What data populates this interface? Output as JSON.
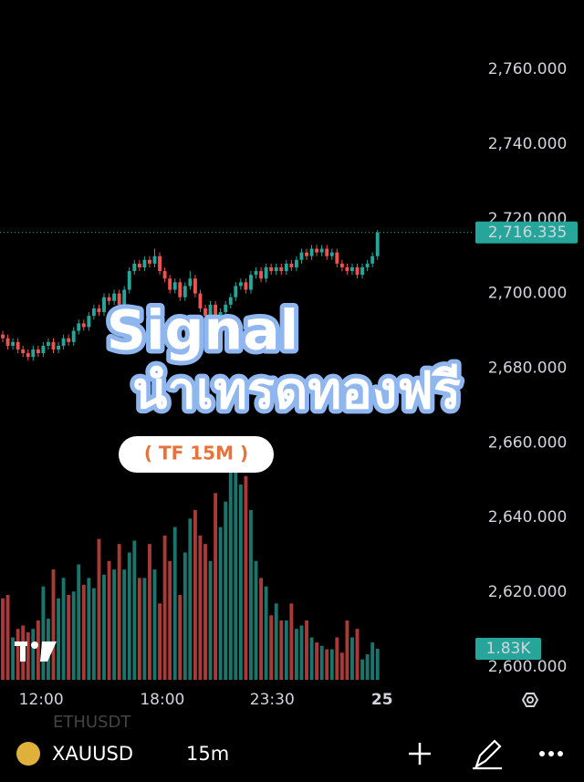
{
  "chart_data": {
    "type": "candlestick",
    "open": [
      2689,
      2688,
      2686,
      2687,
      2685,
      2684,
      2683,
      2685,
      2684,
      2686,
      2687,
      2685,
      2686,
      2688,
      2687,
      2690,
      2692,
      2691,
      2694,
      2696,
      2695,
      2699,
      2698,
      2700,
      2697,
      2701,
      2706,
      2708,
      2707,
      2709,
      2708,
      2710,
      2706,
      2704,
      2701,
      2703,
      2699,
      2702,
      2704,
      2700,
      2696,
      2694,
      2697,
      2693,
      2695,
      2697,
      2699,
      2702,
      2703,
      2701,
      2705,
      2706,
      2704,
      2707,
      2706,
      2707,
      2706,
      2708,
      2707,
      2709,
      2711,
      2710,
      2712,
      2711,
      2712,
      2710,
      2711,
      2708,
      2707,
      2706,
      2707,
      2705,
      2707,
      2708,
      2710
    ],
    "high": [
      2690,
      2689,
      2688,
      2688,
      2686,
      2685,
      2686,
      2686,
      2687,
      2688,
      2688,
      2687,
      2689,
      2689,
      2691,
      2693,
      2693,
      2695,
      2697,
      2697,
      2700,
      2700,
      2701,
      2701,
      2702,
      2707,
      2709,
      2709,
      2710,
      2710,
      2712,
      2711,
      2707,
      2705,
      2704,
      2704,
      2703,
      2706,
      2705,
      2701,
      2697,
      2698,
      2698,
      2696,
      2698,
      2700,
      2703,
      2704,
      2704,
      2706,
      2707,
      2707,
      2708,
      2708,
      2708,
      2708,
      2709,
      2709,
      2710,
      2712,
      2712,
      2713,
      2713,
      2713,
      2713,
      2712,
      2712,
      2709,
      2708,
      2708,
      2708,
      2708,
      2709,
      2711,
      2717
    ],
    "low": [
      2687,
      2685,
      2685,
      2684,
      2683,
      2682,
      2682,
      2683,
      2683,
      2685,
      2684,
      2684,
      2685,
      2686,
      2686,
      2689,
      2690,
      2690,
      2693,
      2694,
      2694,
      2697,
      2697,
      2696,
      2696,
      2700,
      2705,
      2706,
      2706,
      2707,
      2707,
      2705,
      2703,
      2700,
      2700,
      2698,
      2698,
      2701,
      2699,
      2695,
      2693,
      2693,
      2692,
      2692,
      2694,
      2696,
      2698,
      2701,
      2700,
      2700,
      2704,
      2703,
      2703,
      2705,
      2705,
      2705,
      2705,
      2706,
      2706,
      2708,
      2709,
      2709,
      2710,
      2710,
      2709,
      2709,
      2707,
      2706,
      2705,
      2705,
      2704,
      2704,
      2706,
      2707,
      2709
    ],
    "close": [
      2688,
      2686,
      2687,
      2685,
      2684,
      2683,
      2685,
      2684,
      2686,
      2687,
      2685,
      2686,
      2688,
      2687,
      2690,
      2692,
      2691,
      2694,
      2696,
      2695,
      2699,
      2698,
      2700,
      2697,
      2701,
      2706,
      2708,
      2707,
      2709,
      2708,
      2710,
      2706,
      2704,
      2701,
      2703,
      2699,
      2702,
      2704,
      2700,
      2696,
      2694,
      2697,
      2693,
      2695,
      2697,
      2699,
      2702,
      2703,
      2701,
      2705,
      2706,
      2704,
      2707,
      2706,
      2707,
      2706,
      2708,
      2707,
      2709,
      2711,
      2710,
      2712,
      2711,
      2712,
      2710,
      2711,
      2708,
      2707,
      2706,
      2707,
      2705,
      2707,
      2708,
      2710,
      2716.335
    ],
    "volume": [
      4.8,
      5.0,
      2.5,
      3.0,
      3.2,
      2.8,
      3.0,
      3.5,
      5.5,
      3.6,
      6.5,
      4.8,
      6.0,
      5.0,
      5.2,
      6.8,
      5.6,
      6.0,
      5.4,
      8.3,
      6.2,
      7.0,
      6.5,
      8.0,
      6.5,
      7.5,
      8.2,
      6.0,
      6.0,
      8.0,
      6.5,
      4.5,
      8.5,
      7.0,
      9.0,
      5.0,
      7.5,
      9.5,
      10.0,
      8.5,
      8.0,
      7.0,
      11.0,
      9.0,
      10.5,
      12.8,
      13.7,
      11.5,
      12.0,
      10.0,
      7.0,
      6.0,
      5.5,
      3.8,
      4.5,
      3.5,
      3.5,
      4.5,
      3.0,
      3.2,
      3.5,
      2.5,
      2.2,
      2.0,
      1.8,
      1.8,
      2.5,
      1.6,
      3.5,
      2.5,
      3.0,
      1.2,
      1.5,
      2.2,
      1.83
    ],
    "up_color": "#26a69a",
    "down_color": "#ef5350",
    "ylim": [
      2595.8,
      2778.6
    ],
    "yticks": [
      {
        "value": 2760,
        "label": "2,760.000"
      },
      {
        "value": 2740,
        "label": "2,740.000"
      },
      {
        "value": 2720,
        "label": "2,720.000"
      },
      {
        "value": 2700,
        "label": "2,700.000"
      },
      {
        "value": 2680,
        "label": "2,680.000"
      },
      {
        "value": 2660,
        "label": "2,660.000"
      },
      {
        "value": 2640,
        "label": "2,640.000"
      },
      {
        "value": 2620,
        "label": "2,620.000"
      },
      {
        "value": 2600,
        "label": "2,600.000"
      }
    ],
    "xlim": [
      -0.54,
      93.15
    ],
    "xticks": [
      {
        "value": 7.6,
        "label": "12:00"
      },
      {
        "value": 31.5,
        "label": "18:00"
      },
      {
        "value": 53.2,
        "label": "23:30"
      },
      {
        "value": 74.9,
        "label": "25"
      }
    ],
    "volume_lim": [
      0,
      40.05
    ],
    "last_price": {
      "value": 2716.335,
      "label": "2,716.335"
    },
    "last_volume": {
      "value": 1.83,
      "label": "1.83K"
    }
  },
  "overlay": {
    "title": "Signal",
    "subtitle": "นำเทรดทองฟรี",
    "badge": "( TF 15M )"
  },
  "toolbar": {
    "background_symbol": "ETHUSDT",
    "symbol": "XAUUSD",
    "interval": "15m"
  }
}
